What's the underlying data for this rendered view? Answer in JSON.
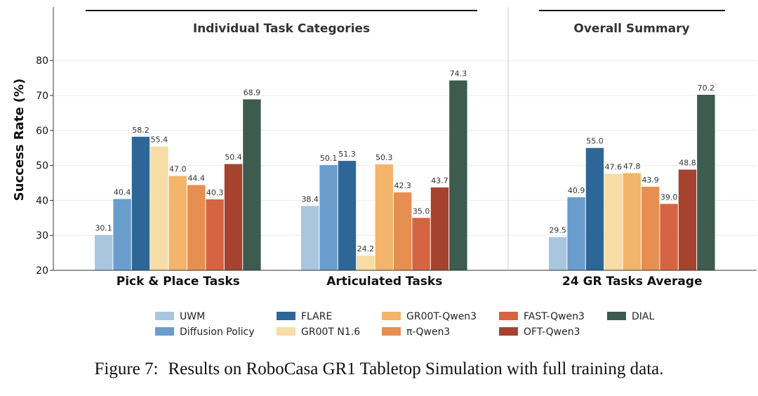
{
  "chart_data": {
    "type": "bar",
    "ylabel": "Success Rate (%)",
    "ylim": [
      20,
      85
    ],
    "yticks": [
      20,
      30,
      40,
      50,
      60,
      70,
      80
    ],
    "grid": true,
    "legend_position": "bottom",
    "sections": [
      {
        "title": "Individual Task Categories"
      },
      {
        "title": "Overall Summary"
      }
    ],
    "categories": [
      "Pick & Place Tasks",
      "Articulated Tasks",
      "24 GR Tasks Average"
    ],
    "series": [
      {
        "name": "UWM",
        "color": "#a9c6df",
        "values": [
          30.1,
          38.4,
          29.5
        ]
      },
      {
        "name": "Diffusion Policy",
        "color": "#6a9dcc",
        "values": [
          40.4,
          50.1,
          40.9
        ]
      },
      {
        "name": "FLARE",
        "color": "#2e6697",
        "values": [
          58.2,
          51.3,
          55.0
        ]
      },
      {
        "name": "GR00T N1.6",
        "color": "#f6dca5",
        "values": [
          55.4,
          24.2,
          47.6
        ]
      },
      {
        "name": "GR00T-Qwen3",
        "color": "#f2b56b",
        "values": [
          47.0,
          50.3,
          47.8
        ]
      },
      {
        "name": "π-Qwen3",
        "color": "#e78f50",
        "values": [
          44.4,
          42.3,
          43.9
        ]
      },
      {
        "name": "FAST-Qwen3",
        "color": "#d66442",
        "values": [
          40.3,
          35.0,
          39.0
        ]
      },
      {
        "name": "OFT-Qwen3",
        "color": "#a5432f",
        "values": [
          50.4,
          43.7,
          48.8
        ]
      },
      {
        "name": "DIAL",
        "color": "#3d5b4f",
        "values": [
          68.9,
          74.3,
          70.2
        ]
      }
    ]
  },
  "caption": {
    "label": "Figure 7:",
    "text": "Results on RoboCasa GR1 Tabletop Simulation with full training data."
  }
}
